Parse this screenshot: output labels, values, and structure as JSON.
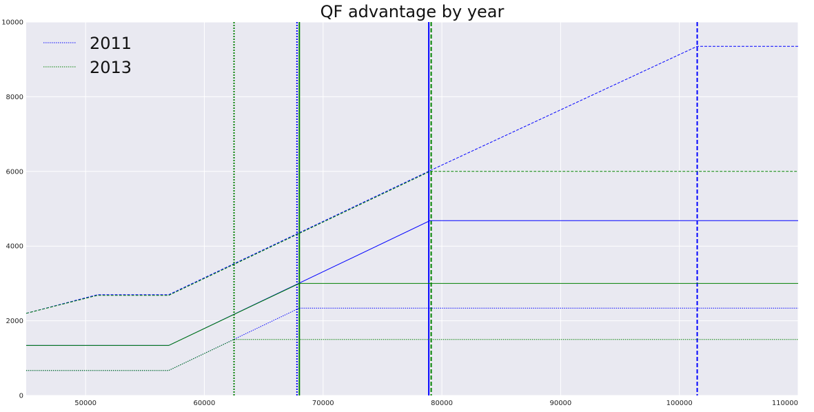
{
  "chart_data": {
    "type": "line",
    "title": "QF advantage by year",
    "xlabel": "",
    "ylabel": "",
    "xlim": [
      45000,
      110000
    ],
    "ylim": [
      0,
      10000
    ],
    "x_ticks": [
      50000,
      60000,
      70000,
      80000,
      90000,
      100000,
      110000
    ],
    "y_ticks": [
      0,
      2000,
      4000,
      6000,
      8000,
      10000
    ],
    "grid": true,
    "background": "#e9e9f1",
    "grid_color": "#ffffff",
    "legend": {
      "position": "top-left",
      "entries": [
        {
          "label": "2011",
          "color": "#0000ff",
          "dash": "dotted"
        },
        {
          "label": "2013",
          "color": "#008000",
          "dash": "dotted"
        }
      ]
    },
    "series": [
      {
        "label": "2011",
        "color": "#0000ff",
        "dash": "dashed",
        "x": [
          45000,
          51000,
          57000,
          79000,
          101500,
          110000
        ],
        "y": [
          2200,
          2700,
          2700,
          6020,
          9350,
          9350
        ]
      },
      {
        "label": "2013",
        "color": "#008000",
        "dash": "dashed",
        "x": [
          45000,
          51000,
          57000,
          79000,
          110000
        ],
        "y": [
          2200,
          2680,
          2680,
          6000,
          6000
        ]
      },
      {
        "label": "2011",
        "color": "#0000ff",
        "dash": "solid",
        "x": [
          45000,
          57000,
          79000,
          110000
        ],
        "y": [
          1340,
          1340,
          4680,
          4680
        ]
      },
      {
        "label": "2013",
        "color": "#008000",
        "dash": "solid",
        "x": [
          45000,
          57000,
          68000,
          110000
        ],
        "y": [
          1340,
          1340,
          3000,
          3000
        ]
      },
      {
        "label": "2011",
        "color": "#0000ff",
        "dash": "dotted",
        "x": [
          45000,
          57000,
          68000,
          110000
        ],
        "y": [
          670,
          670,
          2340,
          2340
        ]
      },
      {
        "label": "2013",
        "color": "#008000",
        "dash": "dotted",
        "x": [
          45000,
          57000,
          62500,
          110000
        ],
        "y": [
          670,
          670,
          1500,
          1500
        ]
      }
    ],
    "vlines": [
      {
        "x": 62500,
        "color": "#008000",
        "dash": "dotted"
      },
      {
        "x": 67800,
        "color": "#0000ff",
        "dash": "dotted"
      },
      {
        "x": 68000,
        "color": "#008000",
        "dash": "solid"
      },
      {
        "x": 78900,
        "color": "#0000ff",
        "dash": "solid"
      },
      {
        "x": 79100,
        "color": "#008000",
        "dash": "dashed"
      },
      {
        "x": 101500,
        "color": "#0000ff",
        "dash": "dashed"
      }
    ]
  }
}
